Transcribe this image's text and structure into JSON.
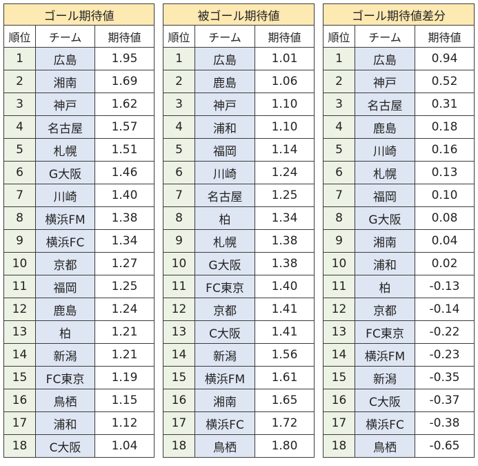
{
  "tables": [
    {
      "title": "ゴール期待値",
      "headers": [
        "順位",
        "チーム",
        "期待値"
      ],
      "rows": [
        {
          "rank": "1",
          "team": "広島",
          "value": "1.95"
        },
        {
          "rank": "2",
          "team": "湘南",
          "value": "1.69"
        },
        {
          "rank": "3",
          "team": "神戸",
          "value": "1.62"
        },
        {
          "rank": "4",
          "team": "名古屋",
          "value": "1.57"
        },
        {
          "rank": "5",
          "team": "札幌",
          "value": "1.51"
        },
        {
          "rank": "6",
          "team": "G大阪",
          "value": "1.46"
        },
        {
          "rank": "7",
          "team": "川崎",
          "value": "1.40"
        },
        {
          "rank": "8",
          "team": "横浜FM",
          "value": "1.38"
        },
        {
          "rank": "9",
          "team": "横浜FC",
          "value": "1.34"
        },
        {
          "rank": "10",
          "team": "京都",
          "value": "1.27"
        },
        {
          "rank": "11",
          "team": "福岡",
          "value": "1.25"
        },
        {
          "rank": "12",
          "team": "鹿島",
          "value": "1.24"
        },
        {
          "rank": "13",
          "team": "柏",
          "value": "1.21"
        },
        {
          "rank": "14",
          "team": "新潟",
          "value": "1.21"
        },
        {
          "rank": "15",
          "team": "FC東京",
          "value": "1.19"
        },
        {
          "rank": "16",
          "team": "鳥栖",
          "value": "1.15"
        },
        {
          "rank": "17",
          "team": "浦和",
          "value": "1.12"
        },
        {
          "rank": "18",
          "team": "C大阪",
          "value": "1.04"
        }
      ]
    },
    {
      "title": "被ゴール期待値",
      "headers": [
        "順位",
        "チーム",
        "期待値"
      ],
      "rows": [
        {
          "rank": "1",
          "team": "広島",
          "value": "1.01"
        },
        {
          "rank": "2",
          "team": "鹿島",
          "value": "1.06"
        },
        {
          "rank": "3",
          "team": "神戸",
          "value": "1.10"
        },
        {
          "rank": "4",
          "team": "浦和",
          "value": "1.10"
        },
        {
          "rank": "5",
          "team": "福岡",
          "value": "1.14"
        },
        {
          "rank": "6",
          "team": "川崎",
          "value": "1.24"
        },
        {
          "rank": "7",
          "team": "名古屋",
          "value": "1.25"
        },
        {
          "rank": "8",
          "team": "柏",
          "value": "1.34"
        },
        {
          "rank": "9",
          "team": "札幌",
          "value": "1.38"
        },
        {
          "rank": "10",
          "team": "G大阪",
          "value": "1.38"
        },
        {
          "rank": "11",
          "team": "FC東京",
          "value": "1.40"
        },
        {
          "rank": "12",
          "team": "京都",
          "value": "1.41"
        },
        {
          "rank": "13",
          "team": "C大阪",
          "value": "1.41"
        },
        {
          "rank": "14",
          "team": "新潟",
          "value": "1.56"
        },
        {
          "rank": "15",
          "team": "横浜FM",
          "value": "1.61"
        },
        {
          "rank": "16",
          "team": "湘南",
          "value": "1.65"
        },
        {
          "rank": "17",
          "team": "横浜FC",
          "value": "1.72"
        },
        {
          "rank": "18",
          "team": "鳥栖",
          "value": "1.80"
        }
      ]
    },
    {
      "title": "ゴール期待値差分",
      "headers": [
        "順位",
        "チーム",
        "期待値"
      ],
      "rows": [
        {
          "rank": "1",
          "team": "広島",
          "value": "0.94"
        },
        {
          "rank": "2",
          "team": "神戸",
          "value": "0.52"
        },
        {
          "rank": "3",
          "team": "名古屋",
          "value": "0.31"
        },
        {
          "rank": "4",
          "team": "鹿島",
          "value": "0.18"
        },
        {
          "rank": "5",
          "team": "川崎",
          "value": "0.16"
        },
        {
          "rank": "6",
          "team": "札幌",
          "value": "0.13"
        },
        {
          "rank": "7",
          "team": "福岡",
          "value": "0.10"
        },
        {
          "rank": "8",
          "team": "G大阪",
          "value": "0.08"
        },
        {
          "rank": "9",
          "team": "湘南",
          "value": "0.04"
        },
        {
          "rank": "10",
          "team": "浦和",
          "value": "0.02"
        },
        {
          "rank": "11",
          "team": "柏",
          "value": "-0.13"
        },
        {
          "rank": "12",
          "team": "京都",
          "value": "-0.14"
        },
        {
          "rank": "13",
          "team": "FC東京",
          "value": "-0.22"
        },
        {
          "rank": "14",
          "team": "横浜FM",
          "value": "-0.23"
        },
        {
          "rank": "15",
          "team": "新潟",
          "value": "-0.35"
        },
        {
          "rank": "16",
          "team": "C大阪",
          "value": "-0.37"
        },
        {
          "rank": "17",
          "team": "横浜FC",
          "value": "-0.38"
        },
        {
          "rank": "18",
          "team": "鳥栖",
          "value": "-0.65"
        }
      ]
    }
  ],
  "colors": {
    "title_bg": "#fde9b2",
    "rank_bg": "#ecf2e4",
    "team_bg": "#dfe6f3",
    "value_bg": "#ffffff",
    "border": "#3a3a3a"
  }
}
